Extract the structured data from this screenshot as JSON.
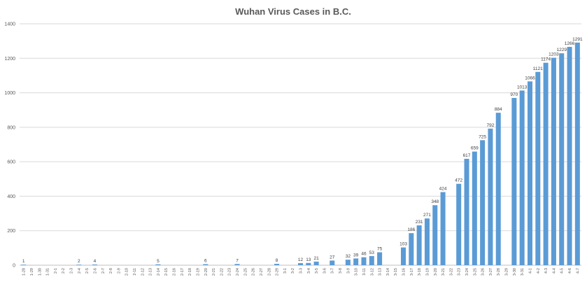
{
  "chart_data": {
    "type": "bar",
    "title": "Wuhan Virus Cases in B.C.",
    "xlabel": "",
    "ylabel": "",
    "ylim": [
      0,
      1400
    ],
    "yticks": [
      0,
      200,
      400,
      600,
      800,
      1000,
      1200,
      1400
    ],
    "grid": true,
    "legend": "none",
    "bar_color": "#5b9bd5",
    "categories": [
      "1-28",
      "1-29",
      "1-30",
      "1-31",
      "2-1",
      "2-2",
      "2-3",
      "2-4",
      "2-5",
      "2-6",
      "2-7",
      "2-8",
      "2-9",
      "2-10",
      "2-11",
      "2-12",
      "2-13",
      "2-14",
      "2-15",
      "2-16",
      "2-17",
      "2-18",
      "2-19",
      "2-20",
      "2-21",
      "2-22",
      "2-23",
      "2-24",
      "2-25",
      "2-26",
      "2-27",
      "2-28",
      "2-29",
      "3-1",
      "3-2",
      "3-3",
      "3-4",
      "3-5",
      "3-6",
      "3-7",
      "3-8",
      "3-9",
      "3-10",
      "3-11",
      "3-12",
      "3-13",
      "3-14",
      "3-15",
      "3-16",
      "3-17",
      "3-18",
      "3-19",
      "3-20",
      "3-21",
      "3-22",
      "3-23",
      "3-24",
      "3-25",
      "3-26",
      "3-27",
      "3-28",
      "3-29",
      "3-30",
      "3-31",
      "4-1",
      "4-2",
      "4-3",
      "4-4",
      "4-5",
      "4-6",
      "4-7"
    ],
    "values": [
      1,
      null,
      null,
      null,
      null,
      null,
      null,
      2,
      null,
      4,
      null,
      null,
      null,
      null,
      null,
      null,
      null,
      5,
      null,
      null,
      null,
      null,
      null,
      6,
      null,
      null,
      null,
      7,
      null,
      null,
      null,
      null,
      8,
      null,
      null,
      12,
      13,
      21,
      null,
      27,
      null,
      32,
      39,
      46,
      53,
      75,
      null,
      null,
      103,
      186,
      231,
      271,
      348,
      424,
      null,
      472,
      617,
      659,
      725,
      792,
      884,
      null,
      970,
      1013,
      1066,
      1121,
      1174,
      1203,
      1229,
      1266,
      1291
    ]
  }
}
